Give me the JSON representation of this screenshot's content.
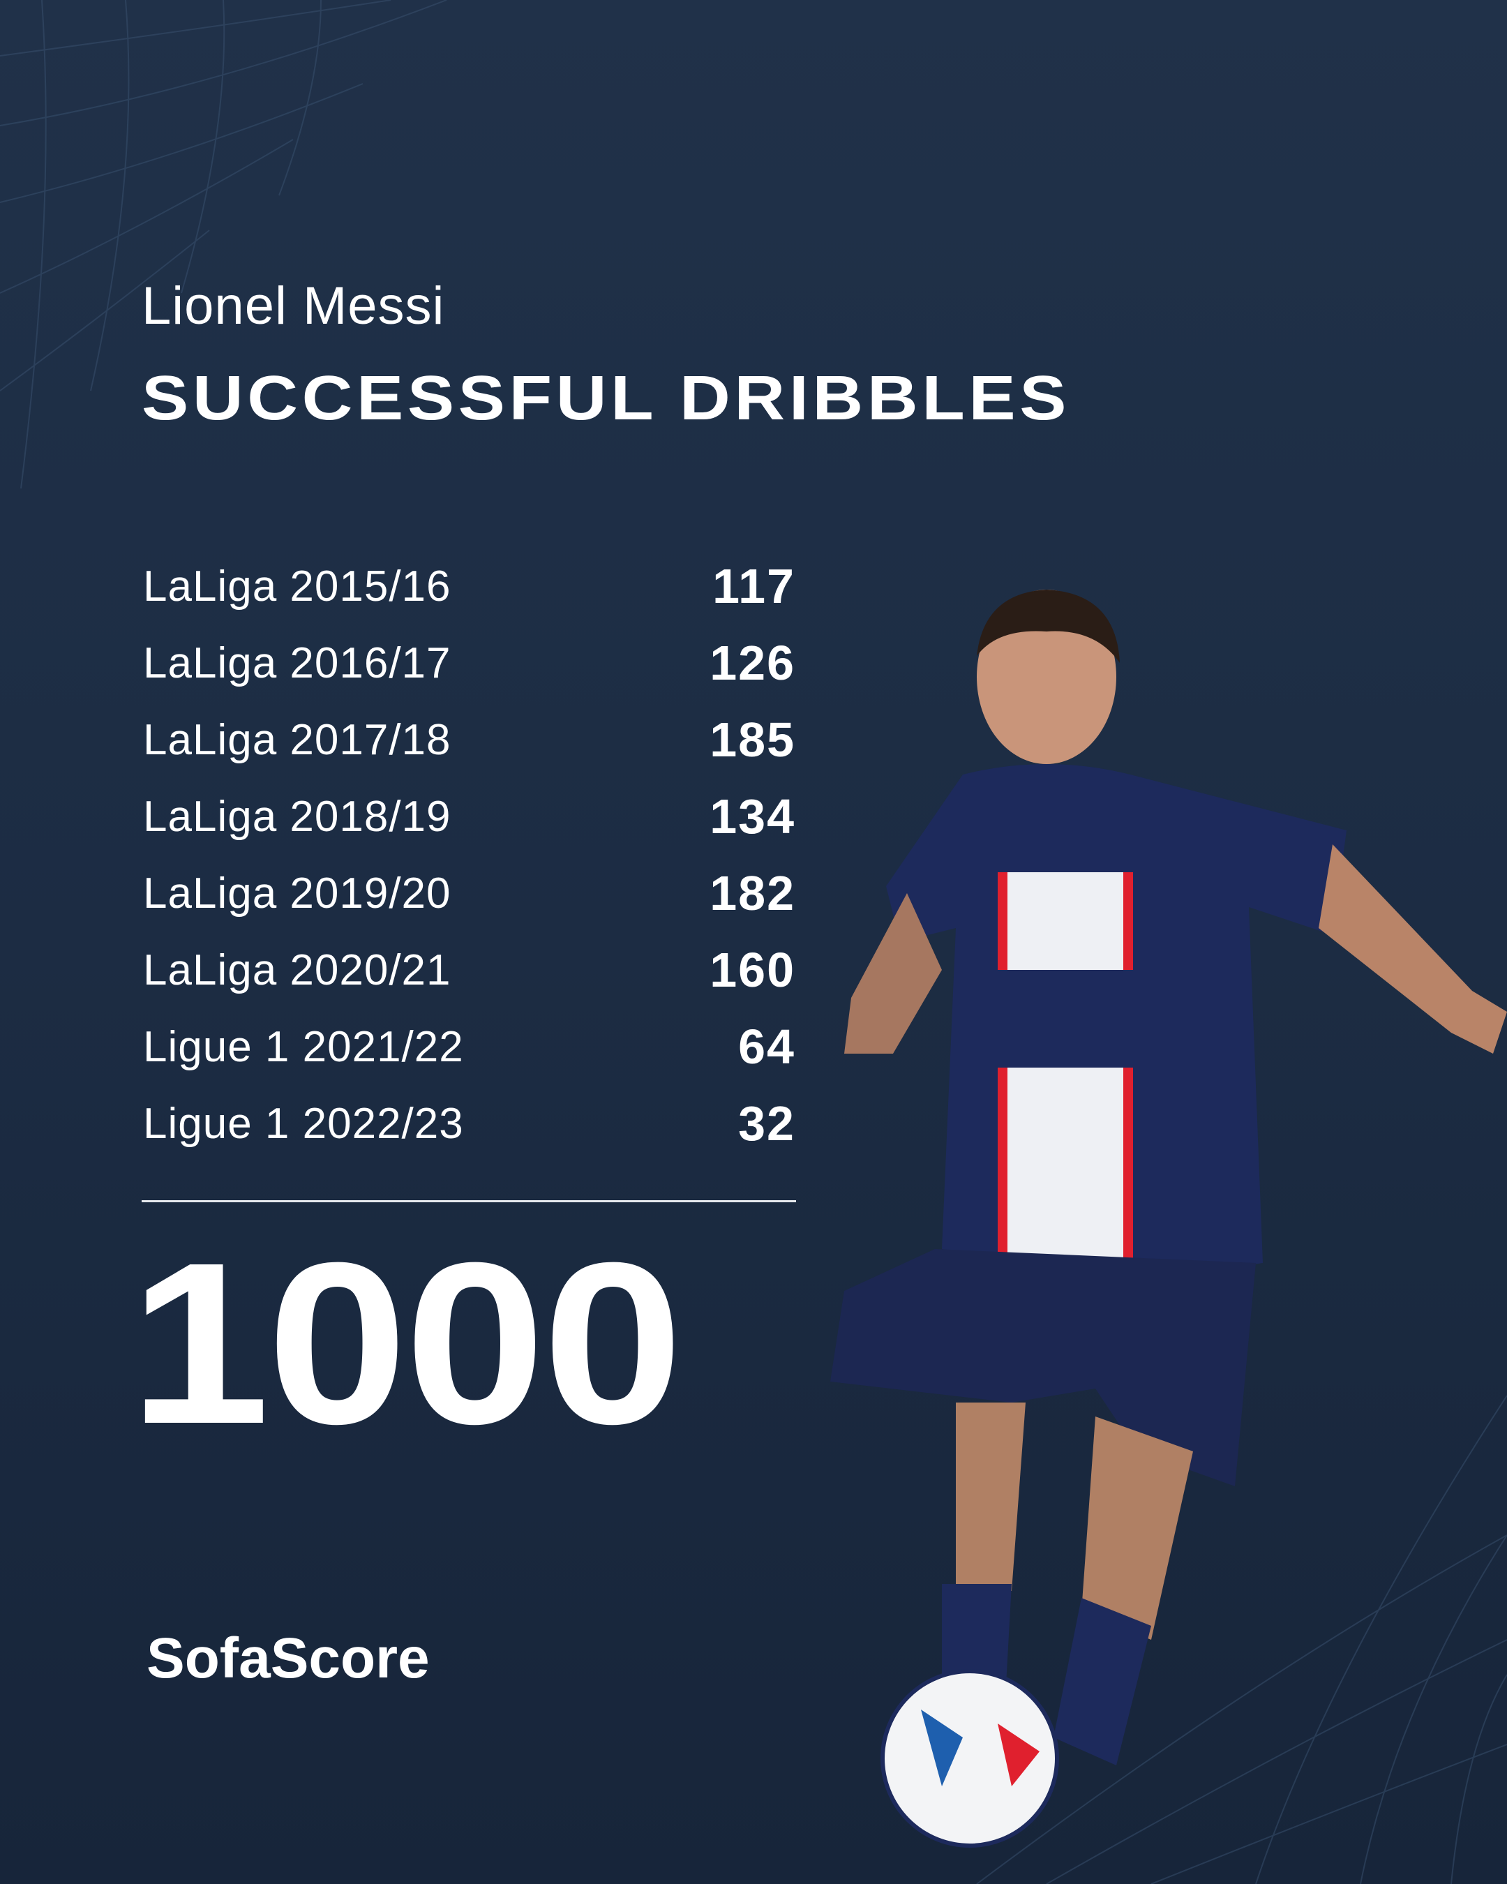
{
  "header": {
    "player_name": "Lionel Messi",
    "title": "SUCCESSFUL DRIBBLES"
  },
  "seasons": [
    {
      "label": "LaLiga 2015/16",
      "value": "117"
    },
    {
      "label": "LaLiga 2016/17",
      "value": "126"
    },
    {
      "label": "LaLiga 2017/18",
      "value": "185"
    },
    {
      "label": "LaLiga 2018/19",
      "value": "134"
    },
    {
      "label": "LaLiga 2019/20",
      "value": "182"
    },
    {
      "label": "LaLiga 2020/21",
      "value": "160"
    },
    {
      "label": "Ligue 1 2021/22",
      "value": "64"
    },
    {
      "label": "Ligue 1 2022/23",
      "value": "32"
    }
  ],
  "total": "1000",
  "brand": {
    "logo": "SofaScore"
  },
  "colors": {
    "background": "#1e2e46",
    "text": "#ffffff",
    "kit": "#1d2a5c",
    "stripe": "#e0202e"
  }
}
